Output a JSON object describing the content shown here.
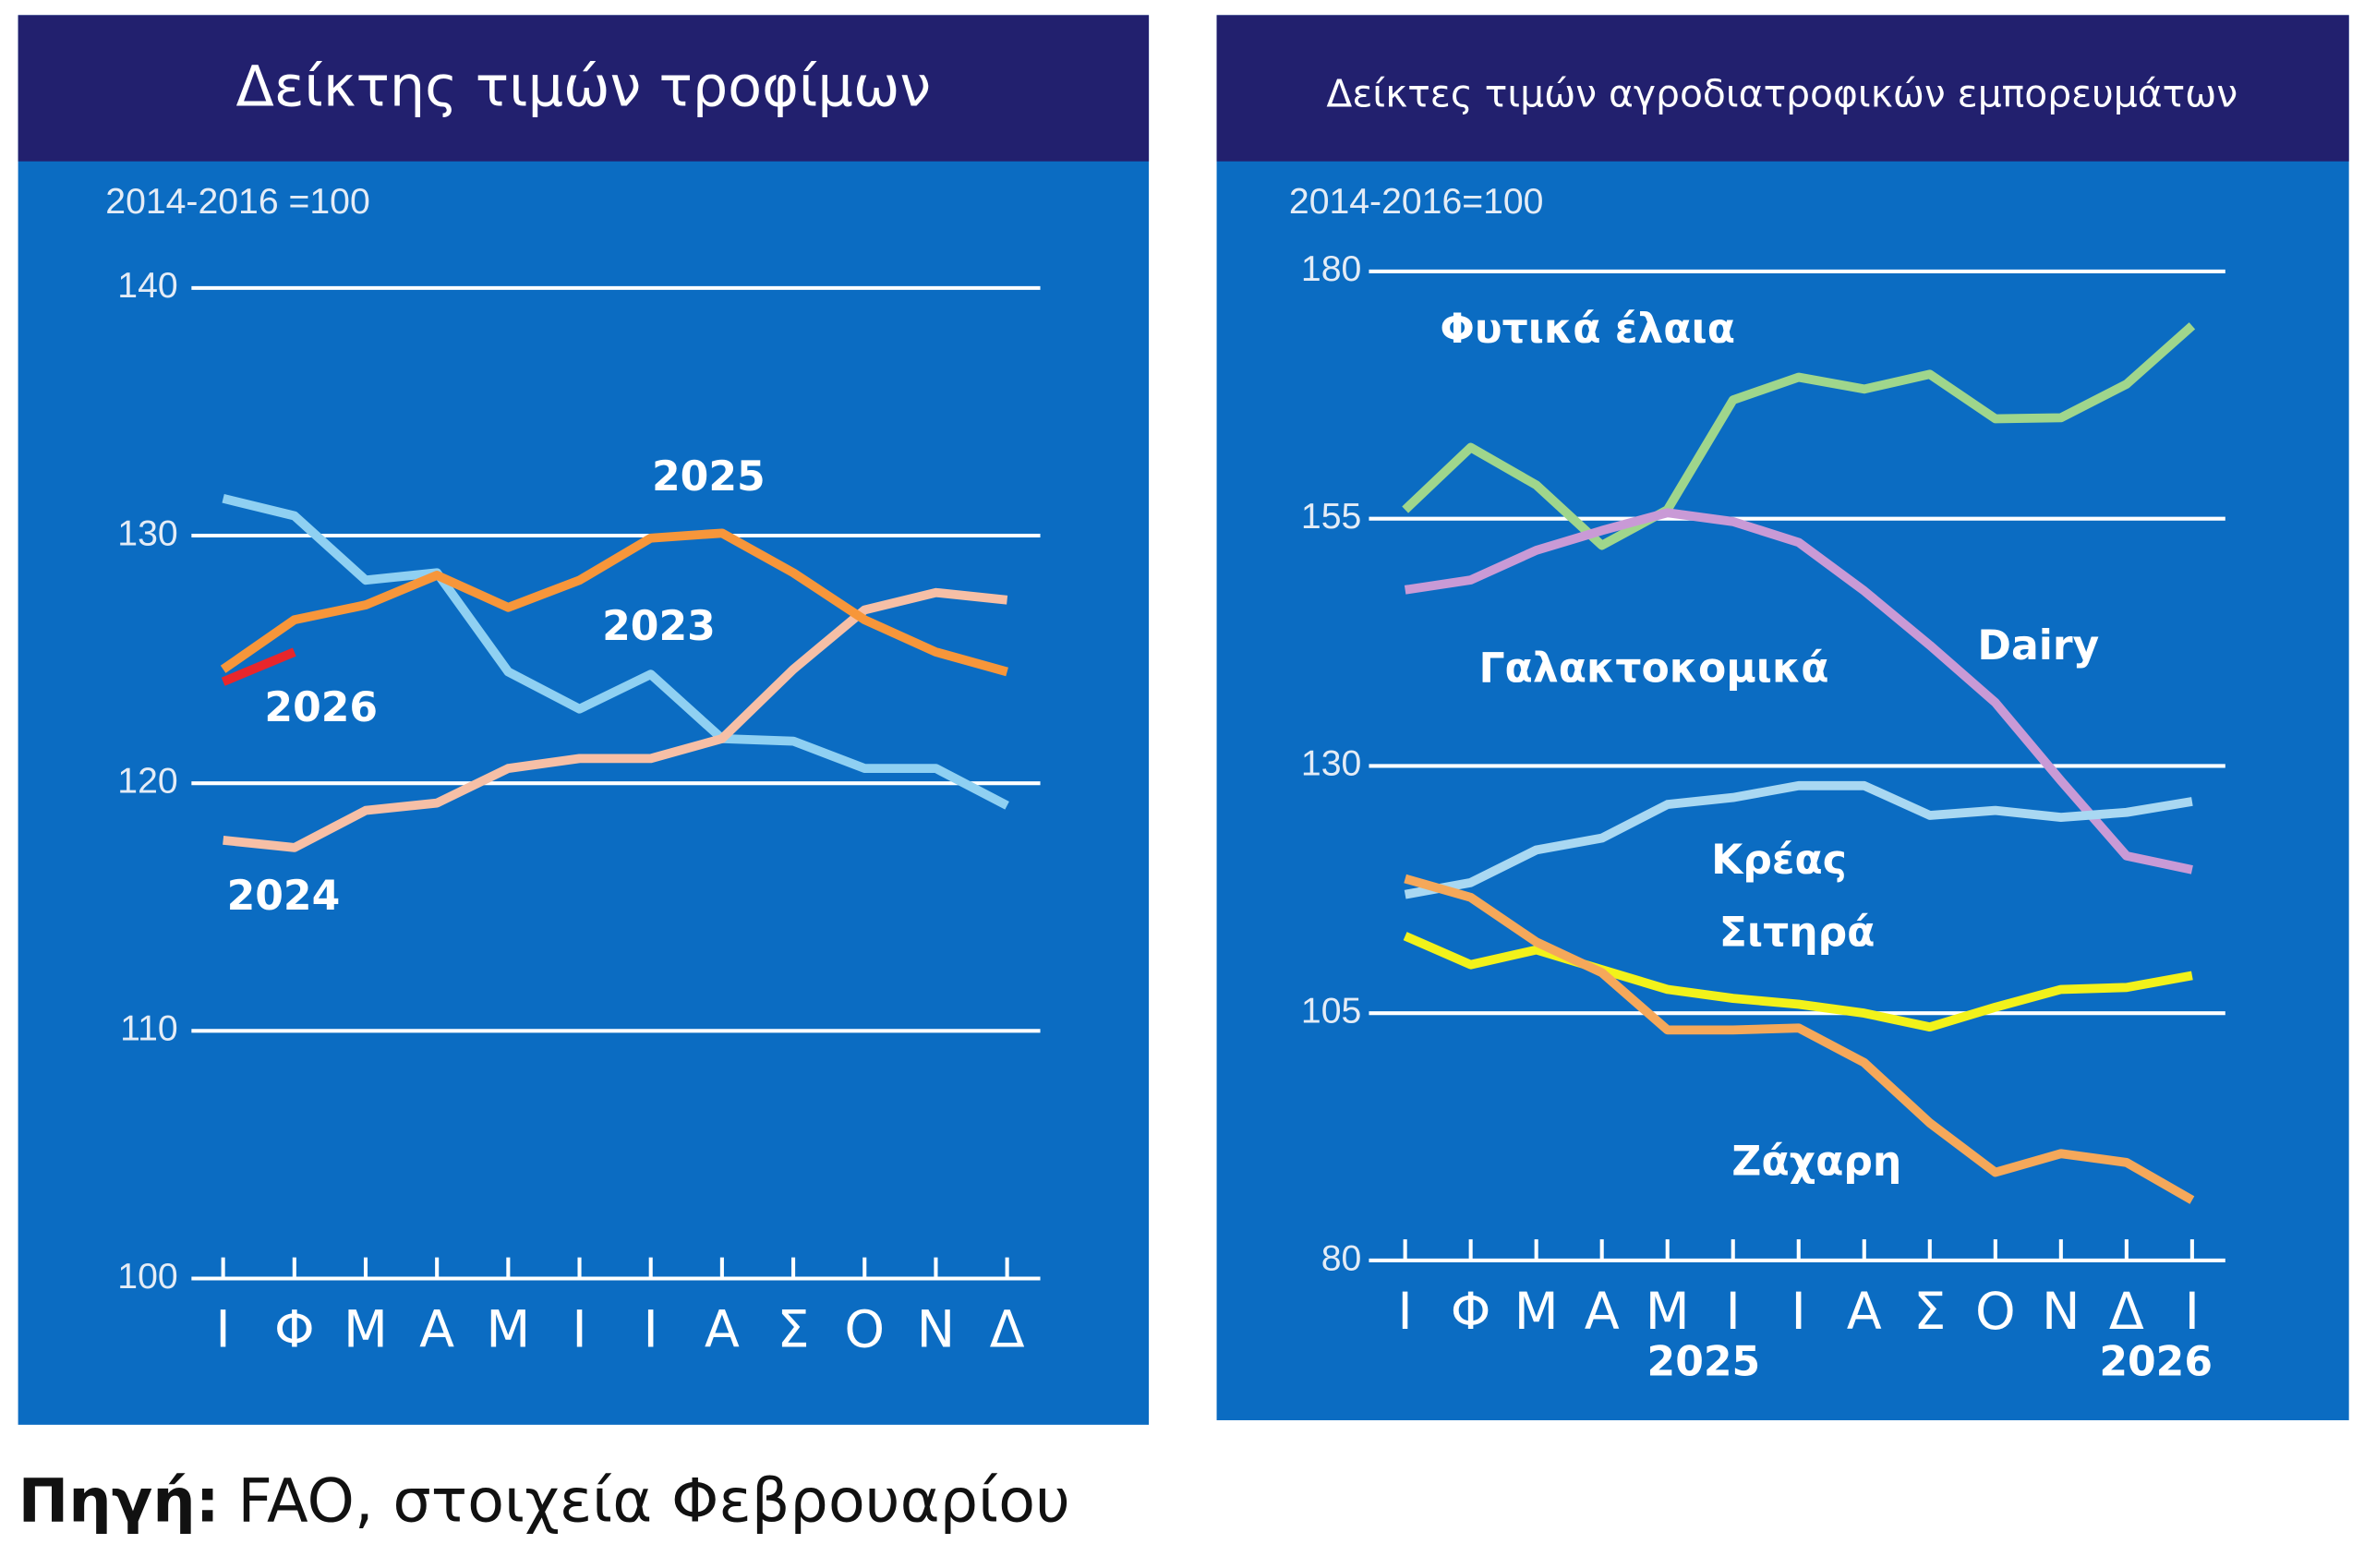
{
  "chart_data": [
    {
      "type": "line",
      "title": "Δείκτης τιμών τροφίμων",
      "unit_label": "2014-2016 =100",
      "categories": [
        "Ι",
        "Φ",
        "Μ",
        "Α",
        "Μ",
        "Ι",
        "Ι",
        "Α",
        "Σ",
        "Ο",
        "Ν",
        "Δ"
      ],
      "ylim": [
        100,
        140
      ],
      "yticks": [
        100,
        110,
        120,
        130,
        140
      ],
      "grid": true,
      "series": [
        {
          "name": "2023",
          "color": "#8fd0f2",
          "values": [
            131.5,
            130.8,
            128.2,
            128.5,
            124.5,
            123.0,
            124.4,
            121.8,
            121.7,
            120.6,
            120.6,
            119.1
          ]
        },
        {
          "name": "2024",
          "color": "#f6bfa6",
          "values": [
            117.7,
            117.4,
            118.9,
            119.2,
            120.6,
            121.0,
            121.0,
            121.8,
            124.6,
            127.0,
            127.7,
            127.4
          ]
        },
        {
          "name": "2025",
          "color": "#f7963a",
          "values": [
            124.6,
            126.6,
            127.2,
            128.4,
            127.1,
            128.2,
            129.9,
            130.1,
            128.5,
            126.6,
            125.3,
            124.5
          ]
        },
        {
          "name": "2026",
          "color": "#e8262b",
          "values": [
            124.1,
            125.3,
            null,
            null,
            null,
            null,
            null,
            null,
            null,
            null,
            null,
            null
          ]
        }
      ]
    },
    {
      "type": "line",
      "title": "Δείκτες τιμών αγροδιατροφικών εμπορευμάτων",
      "unit_label": "2014-2016=100",
      "categories": [
        "Ι",
        "Φ",
        "Μ",
        "Α",
        "Μ",
        "Ι",
        "Ι",
        "Α",
        "Σ",
        "Ο",
        "Ν",
        "Δ",
        "Ι"
      ],
      "year_labels": [
        "2025",
        "2026"
      ],
      "ylim": [
        80,
        180
      ],
      "yticks": [
        80,
        105,
        130,
        155,
        180
      ],
      "grid": true,
      "annotations": [
        "Dairy"
      ],
      "series": [
        {
          "name": "Φυτικά έλαια",
          "color": "#9fd68c",
          "values": [
            155.9,
            162.2,
            158.4,
            152.3,
            155.9,
            167.0,
            169.3,
            168.1,
            169.6,
            165.1,
            165.2,
            168.6,
            174.5
          ]
        },
        {
          "name": "Γαλακτοκομικά",
          "color": "#c99ad6",
          "values": [
            147.8,
            148.8,
            151.8,
            153.8,
            155.6,
            154.7,
            152.6,
            147.7,
            142.2,
            136.4,
            128.5,
            120.9,
            119.5
          ]
        },
        {
          "name": "Κρέας",
          "color": "#a9d8f2",
          "values": [
            117.0,
            118.2,
            121.5,
            122.7,
            126.1,
            126.8,
            128.0,
            128.0,
            125.0,
            125.5,
            124.8,
            125.3,
            126.4
          ]
        },
        {
          "name": "Σιτηρά",
          "color": "#f2f21a",
          "values": [
            112.8,
            109.9,
            111.4,
            109.4,
            107.4,
            106.5,
            105.9,
            105.0,
            103.6,
            105.6,
            107.4,
            107.6,
            108.8
          ]
        },
        {
          "name": "Ζάχαρη",
          "color": "#f5a85a",
          "values": [
            118.6,
            116.7,
            112.2,
            109.1,
            103.3,
            103.3,
            103.5,
            100.0,
            93.9,
            88.9,
            90.8,
            89.9,
            86.1
          ]
        }
      ]
    }
  ],
  "source": {
    "label": "Πηγή:",
    "text": "FAO, στοιχεία Φεβρουαρίου"
  }
}
